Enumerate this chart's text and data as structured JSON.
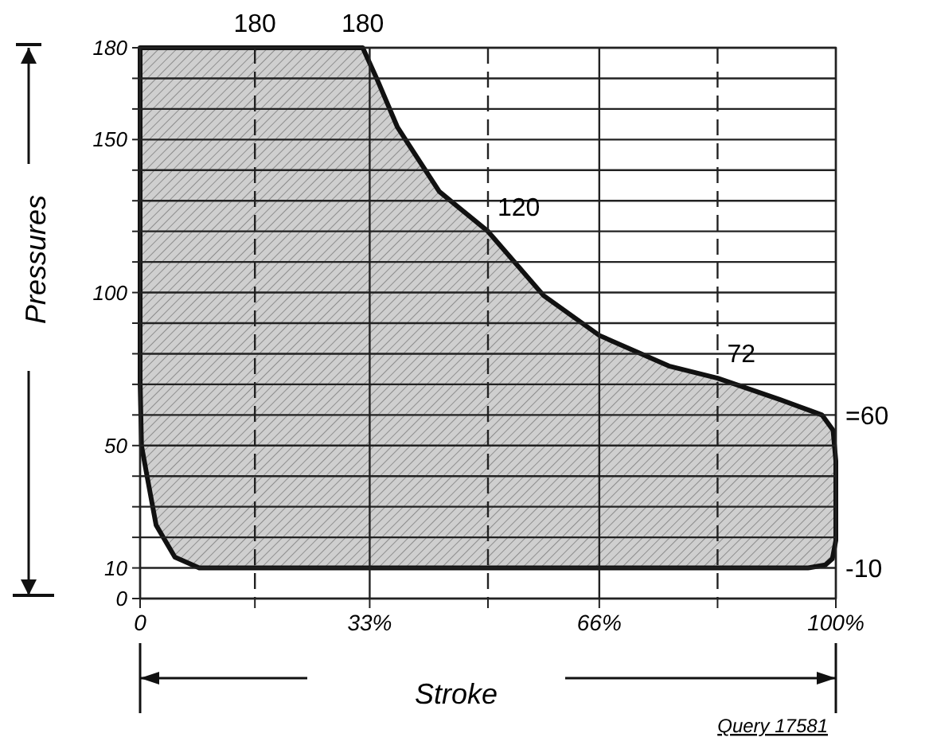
{
  "chart_data": {
    "type": "area",
    "xlabel": "Stroke",
    "ylabel": "Pressures",
    "series": [
      {
        "color": "#111111",
        "x": [
          0,
          16.5,
          32,
          34,
          37,
          43,
          50,
          58,
          66,
          76,
          83,
          92,
          98,
          99.6,
          100,
          100,
          99.5,
          98.5,
          96,
          8.5,
          5,
          2.3,
          1,
          0.2,
          0,
          0
        ],
        "values": [
          180,
          180,
          180,
          170,
          154,
          133,
          120,
          99,
          86,
          76,
          72,
          65,
          60,
          55,
          45,
          19,
          13,
          11,
          10,
          10,
          13.5,
          24,
          40,
          50,
          71,
          180
        ]
      }
    ],
    "xlim": [
      0,
      100
    ],
    "ylim": [
      0,
      180
    ],
    "xticks": [
      {
        "value": 0,
        "label": "0"
      },
      {
        "value": 16.5,
        "label": null
      },
      {
        "value": 33,
        "label": "33%"
      },
      {
        "value": 50,
        "label": null
      },
      {
        "value": 66,
        "label": "66%"
      },
      {
        "value": 83,
        "label": null
      },
      {
        "value": 100,
        "label": "100%"
      }
    ],
    "yticks": [
      {
        "value": 0,
        "label": "0"
      },
      {
        "value": 10,
        "label": "10"
      },
      {
        "value": 20,
        "label": null
      },
      {
        "value": 30,
        "label": null
      },
      {
        "value": 40,
        "label": null
      },
      {
        "value": 50,
        "label": "50"
      },
      {
        "value": 60,
        "label": null
      },
      {
        "value": 70,
        "label": null
      },
      {
        "value": 80,
        "label": null
      },
      {
        "value": 90,
        "label": null
      },
      {
        "value": 100,
        "label": "100"
      },
      {
        "value": 110,
        "label": null
      },
      {
        "value": 120,
        "label": null
      },
      {
        "value": 130,
        "label": null
      },
      {
        "value": 140,
        "label": null
      },
      {
        "value": 150,
        "label": "150"
      },
      {
        "value": 160,
        "label": null
      },
      {
        "value": 170,
        "label": null
      },
      {
        "value": 180,
        "label": "180"
      }
    ],
    "grid": true,
    "annotations": [
      {
        "text": "180",
        "x": 16.5,
        "y": 180
      },
      {
        "text": "180",
        "x": 32,
        "y": 180
      },
      {
        "text": "120",
        "x": 50,
        "y": 120
      },
      {
        "text": "72",
        "x": 83,
        "y": 72
      },
      {
        "text": "=60",
        "x": 98,
        "y": 60
      },
      {
        "text": "-10",
        "x": 96,
        "y": 10
      },
      "Query 17581"
    ]
  }
}
